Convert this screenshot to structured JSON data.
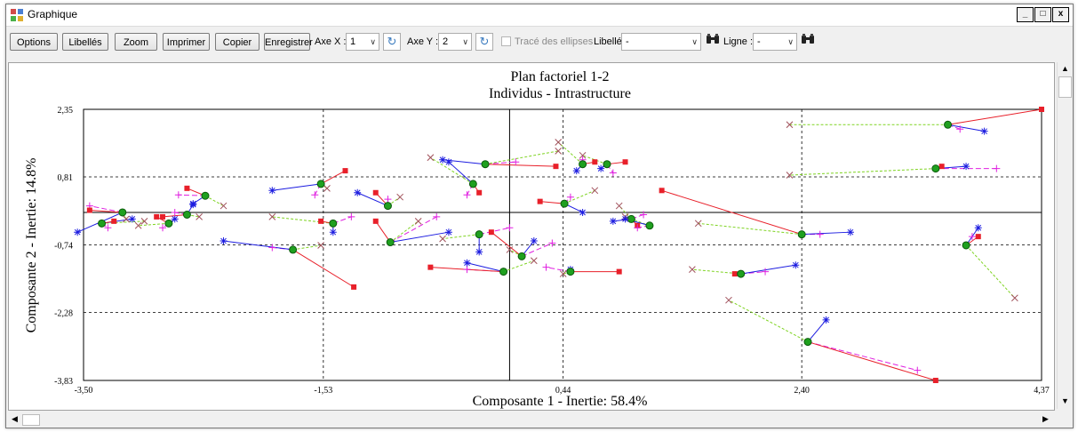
{
  "window": {
    "title": "Graphique",
    "controls": [
      "_",
      "□",
      "x"
    ]
  },
  "toolbar": {
    "options_label": "Options",
    "libelles_label": "Libellés",
    "zoom_label": "Zoom",
    "imprimer_label": "Imprimer",
    "copier_label": "Copier",
    "enregistrer_label": "Enregistrer",
    "axe_x_label": "Axe X :",
    "axe_x_value": "1",
    "axe_y_label": "Axe Y :",
    "axe_y_value": "2",
    "ellipses_label": "Tracé des ellipses",
    "ellipses_checked": false,
    "libelle_label": "Libellé :",
    "libelle_value": "-",
    "ligne_label": "Ligne :",
    "ligne_value": "-"
  },
  "chart_data": {
    "type": "scatter",
    "title": "Plan factoriel 1-2",
    "subtitle": "Individus - Intrastructure",
    "xlabel": "Composante 1 - Inertie:  58.4%",
    "ylabel": "Composante 2 - Inertie:  14.8%",
    "xlim": [
      -3.5,
      4.37
    ],
    "ylim": [
      -3.83,
      2.35
    ],
    "x_ticks": [
      "-3,50",
      "-1,53",
      "0,44",
      "2,40",
      "4,37"
    ],
    "y_ticks": [
      "2,35",
      "0,81",
      "-0,74",
      "-2,28",
      "-3,83"
    ],
    "grid": "dashed",
    "colors": {
      "center": "#1fa01f",
      "red": "#e8202a",
      "blue": "#1c1ce0",
      "magenta": "#e020e0",
      "brown": "#a0505a",
      "lime": "#7ed321"
    },
    "groups": [
      {
        "c": [
          -3.18,
          0.0
        ],
        "r": [
          -3.45,
          0.05
        ],
        "b": [
          -3.55,
          -0.45
        ],
        "m": [
          -3.45,
          0.15
        ],
        "x": [
          -3.15,
          -0.15
        ]
      },
      {
        "c": [
          -3.35,
          -0.25
        ],
        "r": [
          -3.25,
          -0.2
        ],
        "b": [
          -3.1,
          -0.15
        ],
        "m": [
          -3.3,
          -0.35
        ],
        "x": [
          -3.0,
          -0.2
        ]
      },
      {
        "c": [
          -2.8,
          -0.25
        ],
        "r": [
          -2.9,
          -0.1
        ],
        "b": [
          -2.75,
          -0.15
        ],
        "m": [
          -2.85,
          -0.35
        ],
        "x": [
          -3.05,
          -0.3
        ]
      },
      {
        "c": [
          -2.5,
          0.38
        ],
        "r": [
          -2.65,
          0.55
        ],
        "b": [
          -2.6,
          0.2
        ],
        "m": [
          -2.72,
          0.4
        ],
        "x": [
          -2.35,
          0.15
        ]
      },
      {
        "c": [
          -2.65,
          -0.05
        ],
        "r": [
          -2.85,
          -0.1
        ],
        "b": [
          -2.6,
          0.18
        ],
        "m": [
          -2.75,
          0.0
        ],
        "x": [
          -2.55,
          -0.1
        ]
      },
      {
        "c": [
          -1.78,
          -0.85
        ],
        "r": [
          -1.28,
          -1.7
        ],
        "b": [
          -2.35,
          -0.65
        ],
        "m": [
          -1.95,
          -0.8
        ],
        "x": [
          -1.55,
          -0.75
        ]
      },
      {
        "c": [
          -1.55,
          0.65
        ],
        "r": [
          -1.35,
          0.95
        ],
        "b": [
          -1.95,
          0.5
        ],
        "m": [
          -1.6,
          0.4
        ],
        "x": [
          -1.5,
          0.55
        ]
      },
      {
        "c": [
          -1.45,
          -0.25
        ],
        "r": [
          -1.55,
          -0.2
        ],
        "b": [
          -1.45,
          -0.45
        ],
        "m": [
          -1.3,
          -0.1
        ],
        "x": [
          -1.95,
          -0.1
        ]
      },
      {
        "c": [
          -1.0,
          0.15
        ],
        "r": [
          -1.1,
          0.45
        ],
        "b": [
          -1.25,
          0.45
        ],
        "m": [
          -1.0,
          0.3
        ],
        "x": [
          -0.9,
          0.35
        ]
      },
      {
        "c": [
          -0.98,
          -0.68
        ],
        "r": [
          -1.1,
          -0.2
        ],
        "b": [
          -0.5,
          -0.45
        ],
        "m": [
          -0.6,
          -0.1
        ],
        "x": [
          -0.75,
          -0.2
        ]
      },
      {
        "c": [
          -0.3,
          0.65
        ],
        "r": [
          -0.25,
          0.45
        ],
        "b": [
          -0.5,
          1.15
        ],
        "m": [
          -0.35,
          0.4
        ],
        "x": [
          -0.65,
          1.25
        ]
      },
      {
        "c": [
          -0.25,
          -0.5
        ],
        "r": [
          -0.25,
          -0.5
        ],
        "b": [
          -0.25,
          -0.9
        ],
        "m": [
          0.0,
          -0.35
        ],
        "x": [
          -0.55,
          -0.6
        ]
      },
      {
        "c": [
          -0.05,
          -1.35
        ],
        "r": [
          -0.65,
          -1.25
        ],
        "b": [
          -0.35,
          -1.15
        ],
        "m": [
          -0.35,
          -1.3
        ],
        "x": [
          0.2,
          -1.1
        ]
      },
      {
        "c": [
          0.1,
          -1.0
        ],
        "r": [
          -0.15,
          -0.45
        ],
        "b": [
          0.2,
          -0.65
        ],
        "m": [
          0.35,
          -0.7
        ],
        "x": [
          0.0,
          -0.85
        ]
      },
      {
        "c": [
          -0.2,
          1.1
        ],
        "r": [
          0.38,
          1.05
        ],
        "b": [
          -0.55,
          1.2
        ],
        "m": [
          0.05,
          1.15
        ],
        "x": [
          0.4,
          1.4
        ]
      },
      {
        "c": [
          0.6,
          1.1
        ],
        "r": [
          0.7,
          1.15
        ],
        "b": [
          0.55,
          0.95
        ],
        "m": [
          0.6,
          1.2
        ],
        "x": [
          0.4,
          1.6
        ]
      },
      {
        "c": [
          0.8,
          1.1
        ],
        "r": [
          0.95,
          1.15
        ],
        "b": [
          0.75,
          1.0
        ],
        "m": [
          0.85,
          0.9
        ],
        "x": [
          0.6,
          1.3
        ]
      },
      {
        "c": [
          0.45,
          0.2
        ],
        "r": [
          0.25,
          0.25
        ],
        "b": [
          0.6,
          0.0
        ],
        "m": [
          0.5,
          0.35
        ],
        "x": [
          0.7,
          0.5
        ]
      },
      {
        "c": [
          1.0,
          -0.15
        ],
        "r": [
          1.05,
          -0.3
        ],
        "b": [
          0.85,
          -0.2
        ],
        "m": [
          1.1,
          -0.05
        ],
        "x": [
          0.9,
          0.15
        ]
      },
      {
        "c": [
          1.15,
          -0.3
        ],
        "r": [
          1.15,
          -0.3
        ],
        "b": [
          0.95,
          -0.15
        ],
        "m": [
          1.05,
          -0.35
        ],
        "x": [
          0.95,
          -0.1
        ]
      },
      {
        "c": [
          2.4,
          -0.5
        ],
        "r": [
          1.25,
          0.5
        ],
        "b": [
          2.8,
          -0.45
        ],
        "m": [
          2.55,
          -0.5
        ],
        "x": [
          1.55,
          -0.25
        ]
      },
      {
        "c": [
          1.9,
          -1.4
        ],
        "r": [
          1.85,
          -1.4
        ],
        "b": [
          2.35,
          -1.2
        ],
        "m": [
          2.1,
          -1.35
        ],
        "x": [
          1.5,
          -1.3
        ]
      },
      {
        "c": [
          0.5,
          -1.35
        ],
        "r": [
          0.9,
          -1.35
        ],
        "b": [
          0.5,
          -1.3
        ],
        "m": [
          0.3,
          -1.25
        ],
        "x": [
          0.44,
          -1.4
        ]
      },
      {
        "c": [
          2.45,
          -2.95
        ],
        "r": [
          3.5,
          -3.83
        ],
        "b": [
          2.6,
          -2.45
        ],
        "m": [
          3.35,
          -3.6
        ],
        "x": [
          1.8,
          -2.0
        ]
      },
      {
        "c": [
          3.6,
          2.0
        ],
        "r": [
          4.37,
          2.35
        ],
        "b": [
          3.9,
          1.85
        ],
        "m": [
          3.7,
          1.9
        ],
        "x": [
          2.3,
          2.0
        ]
      },
      {
        "c": [
          3.5,
          1.0
        ],
        "r": [
          3.55,
          1.05
        ],
        "b": [
          3.75,
          1.05
        ],
        "m": [
          4.0,
          1.0
        ],
        "x": [
          2.3,
          0.85
        ]
      },
      {
        "c": [
          3.75,
          -0.75
        ],
        "r": [
          3.85,
          -0.55
        ],
        "b": [
          3.85,
          -0.35
        ],
        "m": [
          3.8,
          -0.55
        ],
        "x": [
          4.15,
          -1.95
        ]
      }
    ]
  }
}
